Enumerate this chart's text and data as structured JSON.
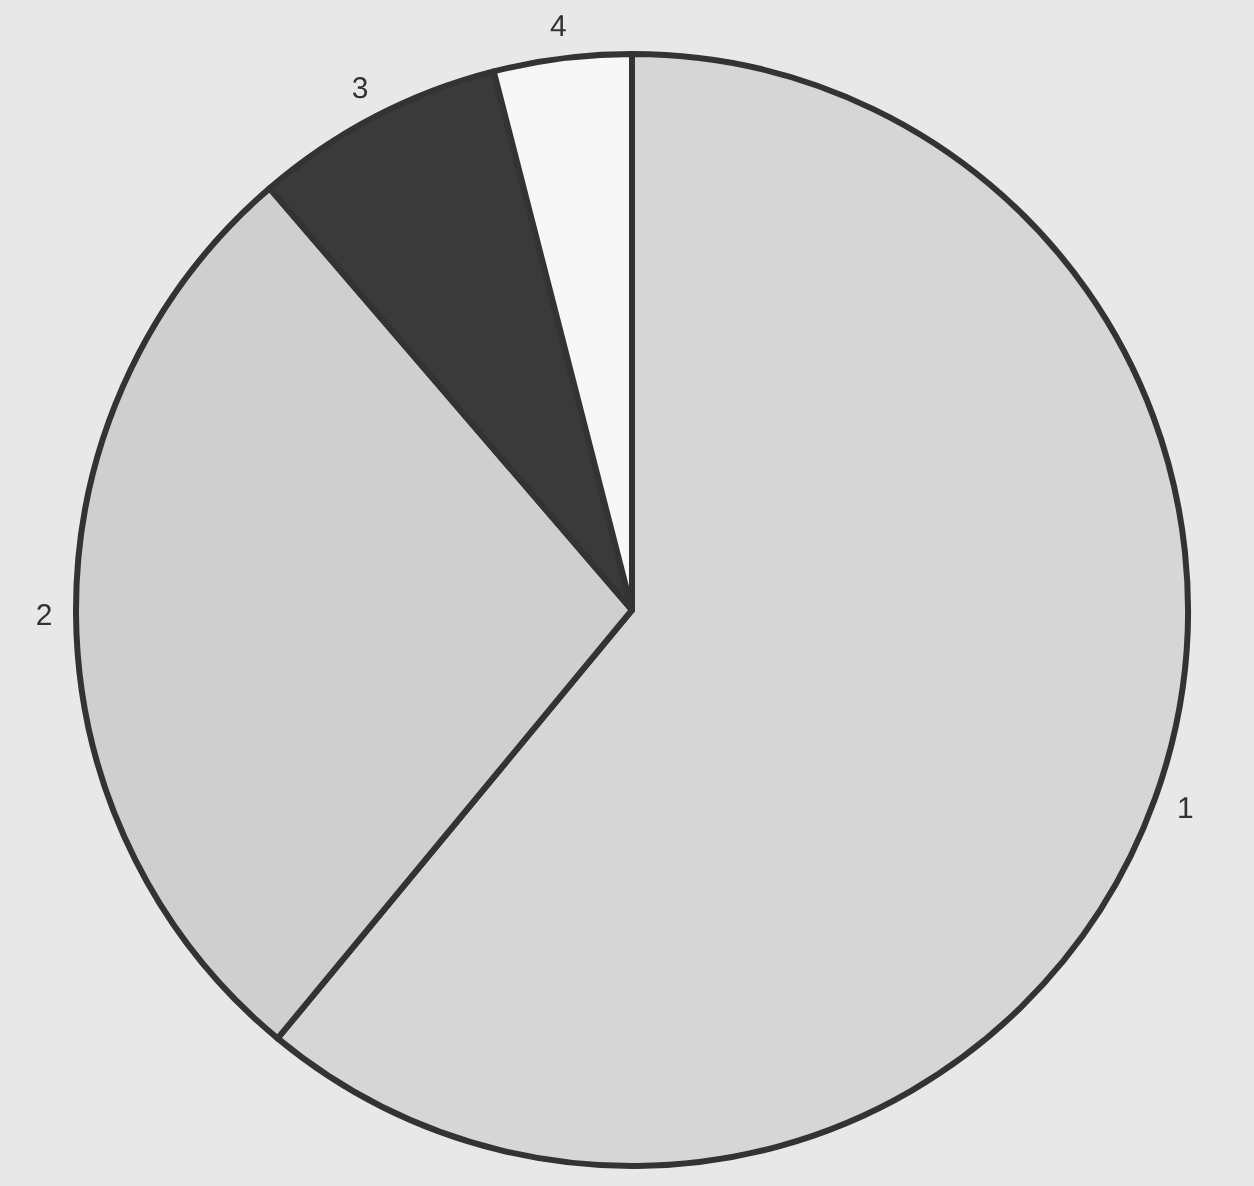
{
  "chart_data": {
    "type": "pie",
    "categories": [
      "1",
      "2",
      "3",
      "4"
    ],
    "values": [
      61,
      27.7,
      7.3,
      4
    ],
    "colors": [
      "#d6d6d6",
      "#cfcfcf",
      "#3a3a3a",
      "#f7f7f7"
    ],
    "legend": false
  }
}
